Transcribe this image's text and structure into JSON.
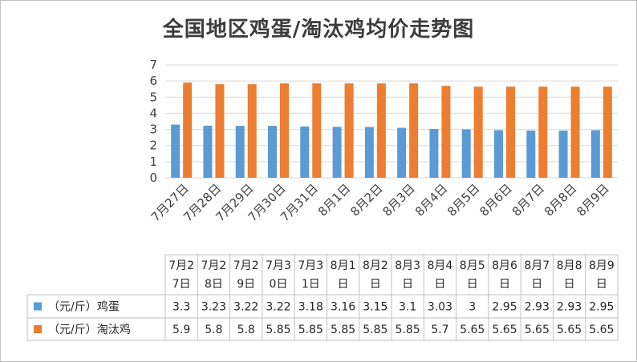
{
  "chart_data": {
    "type": "bar",
    "title": "全国地区鸡蛋/淘汰鸡均价走势图",
    "categories": [
      "7月27日",
      "7月28日",
      "7月29日",
      "7月30日",
      "7月31日",
      "8月1日",
      "8月2日",
      "8月3日",
      "8月4日",
      "8月5日",
      "8月6日",
      "8月7日",
      "8月8日",
      "8月9日"
    ],
    "table_headers": [
      [
        "7月2",
        "7日"
      ],
      [
        "7月2",
        "8日"
      ],
      [
        "7月2",
        "9日"
      ],
      [
        "7月3",
        "0日"
      ],
      [
        "7月3",
        "1日"
      ],
      [
        "8月1",
        "日"
      ],
      [
        "8月2",
        "日"
      ],
      [
        "8月3",
        "日"
      ],
      [
        "8月4",
        "日"
      ],
      [
        "8月5",
        "日"
      ],
      [
        "8月6",
        "日"
      ],
      [
        "8月7",
        "日"
      ],
      [
        "8月8",
        "日"
      ],
      [
        "8月9",
        "日"
      ]
    ],
    "series": [
      {
        "name": "（元/斤）鸡蛋",
        "color": "#5b9bd5",
        "values": [
          3.3,
          3.23,
          3.22,
          3.22,
          3.18,
          3.16,
          3.15,
          3.1,
          3.03,
          3,
          2.95,
          2.93,
          2.93,
          2.95
        ]
      },
      {
        "name": "（元/斤）淘汰鸡",
        "color": "#ed7d31",
        "values": [
          5.9,
          5.8,
          5.8,
          5.85,
          5.85,
          5.85,
          5.85,
          5.85,
          5.7,
          5.65,
          5.65,
          5.65,
          5.65,
          5.65
        ]
      }
    ],
    "ylim": [
      0,
      7
    ],
    "yticks": [
      0,
      1,
      2,
      3,
      4,
      5,
      6,
      7
    ],
    "grid": true,
    "legend": "data-table"
  }
}
